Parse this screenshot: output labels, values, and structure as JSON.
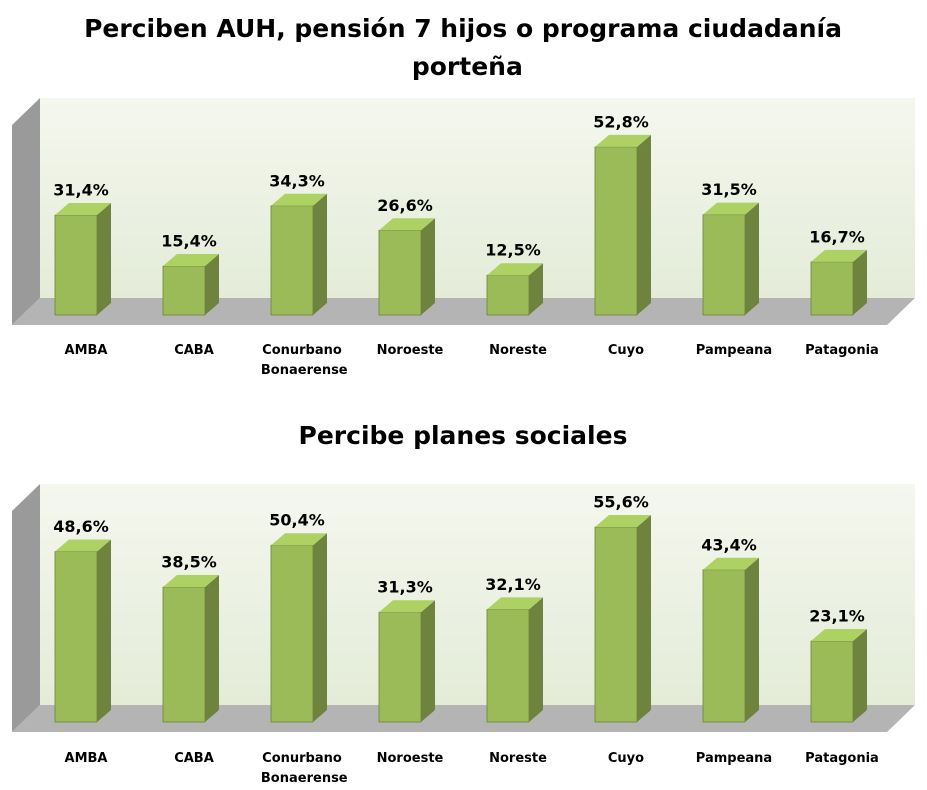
{
  "chart_data": [
    {
      "type": "bar3d",
      "title": "Perciben AUH, pensión 7 hijos o programa ciudadanía porteña",
      "categories": [
        "AMBA",
        "CABA",
        "Conurbano Bonaerense",
        "Noroeste",
        "Noreste",
        "Cuyo",
        "Pampeana",
        "Patagonia"
      ],
      "values": [
        31.4,
        15.4,
        34.3,
        26.6,
        12.5,
        52.8,
        31.5,
        16.7
      ],
      "value_labels": [
        "31,4%",
        "15,4%",
        "34,3%",
        "26,6%",
        "12,5%",
        "52,8%",
        "31,5%",
        "16,7%"
      ],
      "color": "#9bbb59",
      "ylim": [
        0,
        65
      ]
    },
    {
      "type": "bar3d",
      "title": "Percibe planes sociales",
      "categories": [
        "AMBA",
        "CABA",
        "Conurbano Bonaerense",
        "Noroeste",
        "Noreste",
        "Cuyo",
        "Pampeana",
        "Patagonia"
      ],
      "values": [
        48.6,
        38.5,
        50.4,
        31.3,
        32.1,
        55.6,
        43.4,
        23.1
      ],
      "value_labels": [
        "48,6%",
        "38,5%",
        "50,4%",
        "31,3%",
        "32,1%",
        "55,6%",
        "43,4%",
        "23,1%"
      ],
      "color": "#9bbb59",
      "ylim": [
        0,
        65
      ]
    }
  ]
}
